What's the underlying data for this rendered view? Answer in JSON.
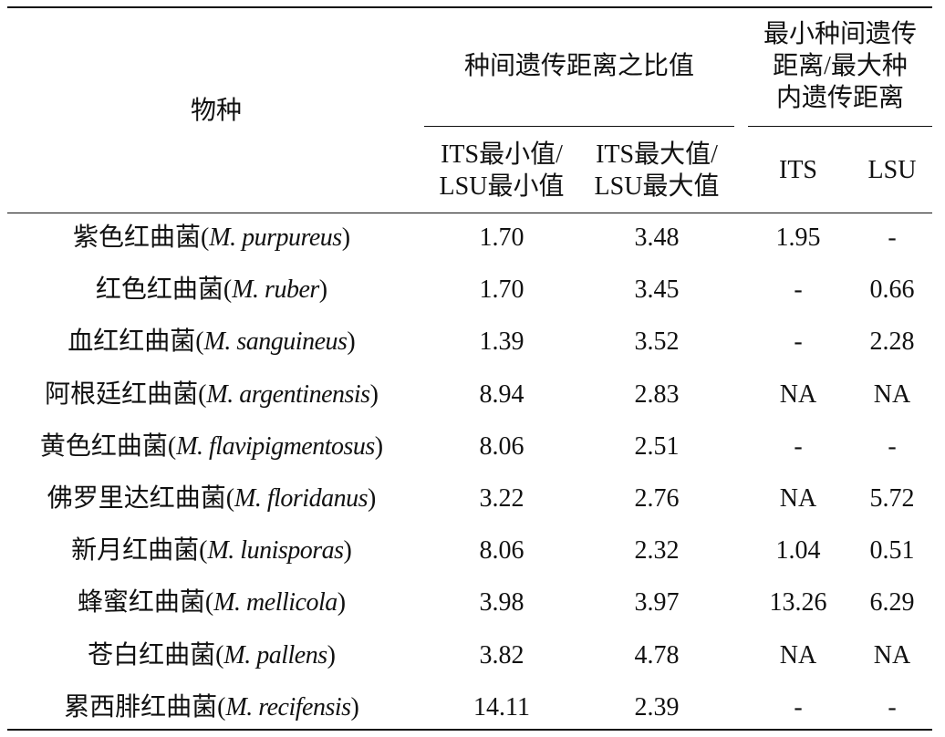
{
  "table": {
    "header": {
      "species": "物种",
      "group1": "种间遗传距离之比值",
      "group2": [
        "最小种间遗传",
        "距离/最大种",
        "内遗传距离"
      ],
      "col_min": [
        "ITS最小值/",
        "LSU最小值"
      ],
      "col_max": [
        "ITS最大值/",
        "LSU最大值"
      ],
      "col_its": "ITS",
      "col_lsu": "LSU"
    },
    "rows": [
      {
        "name": [
          "紫色红曲菌(",
          "M. purpureus",
          ")"
        ],
        "cells": [
          "1.70",
          "3.48",
          "1.95",
          "-"
        ]
      },
      {
        "name": [
          "红色红曲菌(",
          "M. ruber",
          ")"
        ],
        "cells": [
          "1.70",
          "3.45",
          "-",
          "0.66"
        ]
      },
      {
        "name": [
          "血红红曲菌(",
          "M. sanguineus",
          ")"
        ],
        "cells": [
          "1.39",
          "3.52",
          "-",
          "2.28"
        ]
      },
      {
        "name": [
          "阿根廷红曲菌(",
          "M. argentinensis",
          ")"
        ],
        "cells": [
          "8.94",
          "2.83",
          "NA",
          "NA"
        ]
      },
      {
        "name": [
          "黄色红曲菌(",
          "M. flavipigmentosus",
          ")"
        ],
        "cells": [
          "8.06",
          "2.51",
          "-",
          "-"
        ]
      },
      {
        "name": [
          "佛罗里达红曲菌(",
          "M. floridanus",
          ")"
        ],
        "cells": [
          "3.22",
          "2.76",
          "NA",
          "5.72"
        ]
      },
      {
        "name": [
          "新月红曲菌(",
          "M. lunisporas",
          ")"
        ],
        "cells": [
          "8.06",
          "2.32",
          "1.04",
          "0.51"
        ]
      },
      {
        "name": [
          "蜂蜜红曲菌(",
          "M. mellicola",
          ")"
        ],
        "cells": [
          "3.98",
          "3.97",
          "13.26",
          "6.29"
        ]
      },
      {
        "name": [
          "苍白红曲菌(",
          "M. pallens",
          ")"
        ],
        "cells": [
          "3.82",
          "4.78",
          "NA",
          "NA"
        ]
      },
      {
        "name": [
          "累西腓红曲菌(",
          "M. recifensis",
          ")"
        ],
        "cells": [
          "14.11",
          "2.39",
          "-",
          "-"
        ]
      }
    ]
  }
}
